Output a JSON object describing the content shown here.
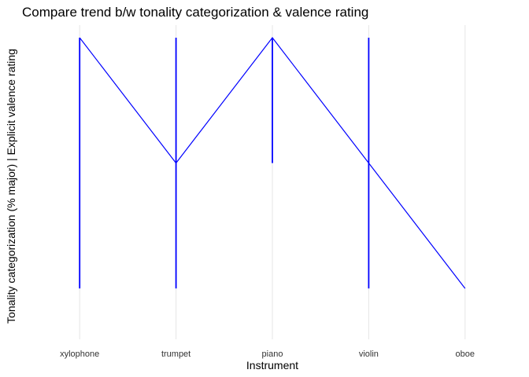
{
  "chart_data": {
    "type": "line",
    "title": "Compare trend b/w tonality categorization & valence rating",
    "xlabel": "Instrument",
    "ylabel": "Tonality categorization (% major) | Explicit valence rating",
    "categories": [
      "xylophone",
      "trumpet",
      "piano",
      "violin",
      "oboe"
    ],
    "ylim": [
      0,
      1.0
    ],
    "grid": "vertical major only",
    "y_tick_labels": "none",
    "series": [
      {
        "color": "#0000ff",
        "points": [
          {
            "x": "xylophone",
            "y": 1.0
          },
          {
            "x": "trumpet",
            "y": 0.6
          },
          {
            "x": "piano",
            "y": 1.0
          },
          {
            "x": "violin",
            "y": 0.6
          },
          {
            "x": "oboe",
            "y": 0.2
          }
        ]
      }
    ],
    "ranges": [
      {
        "x": "xylophone",
        "ymin": 0.2,
        "ymax": 1.0
      },
      {
        "x": "trumpet",
        "ymin": 0.2,
        "ymax": 1.0
      },
      {
        "x": "piano",
        "ymin": 0.6,
        "ymax": 1.0
      },
      {
        "x": "violin",
        "ymin": 0.2,
        "ymax": 1.0
      },
      {
        "x": "oboe",
        "ymin": 0.2,
        "ymax": 0.2
      }
    ]
  }
}
